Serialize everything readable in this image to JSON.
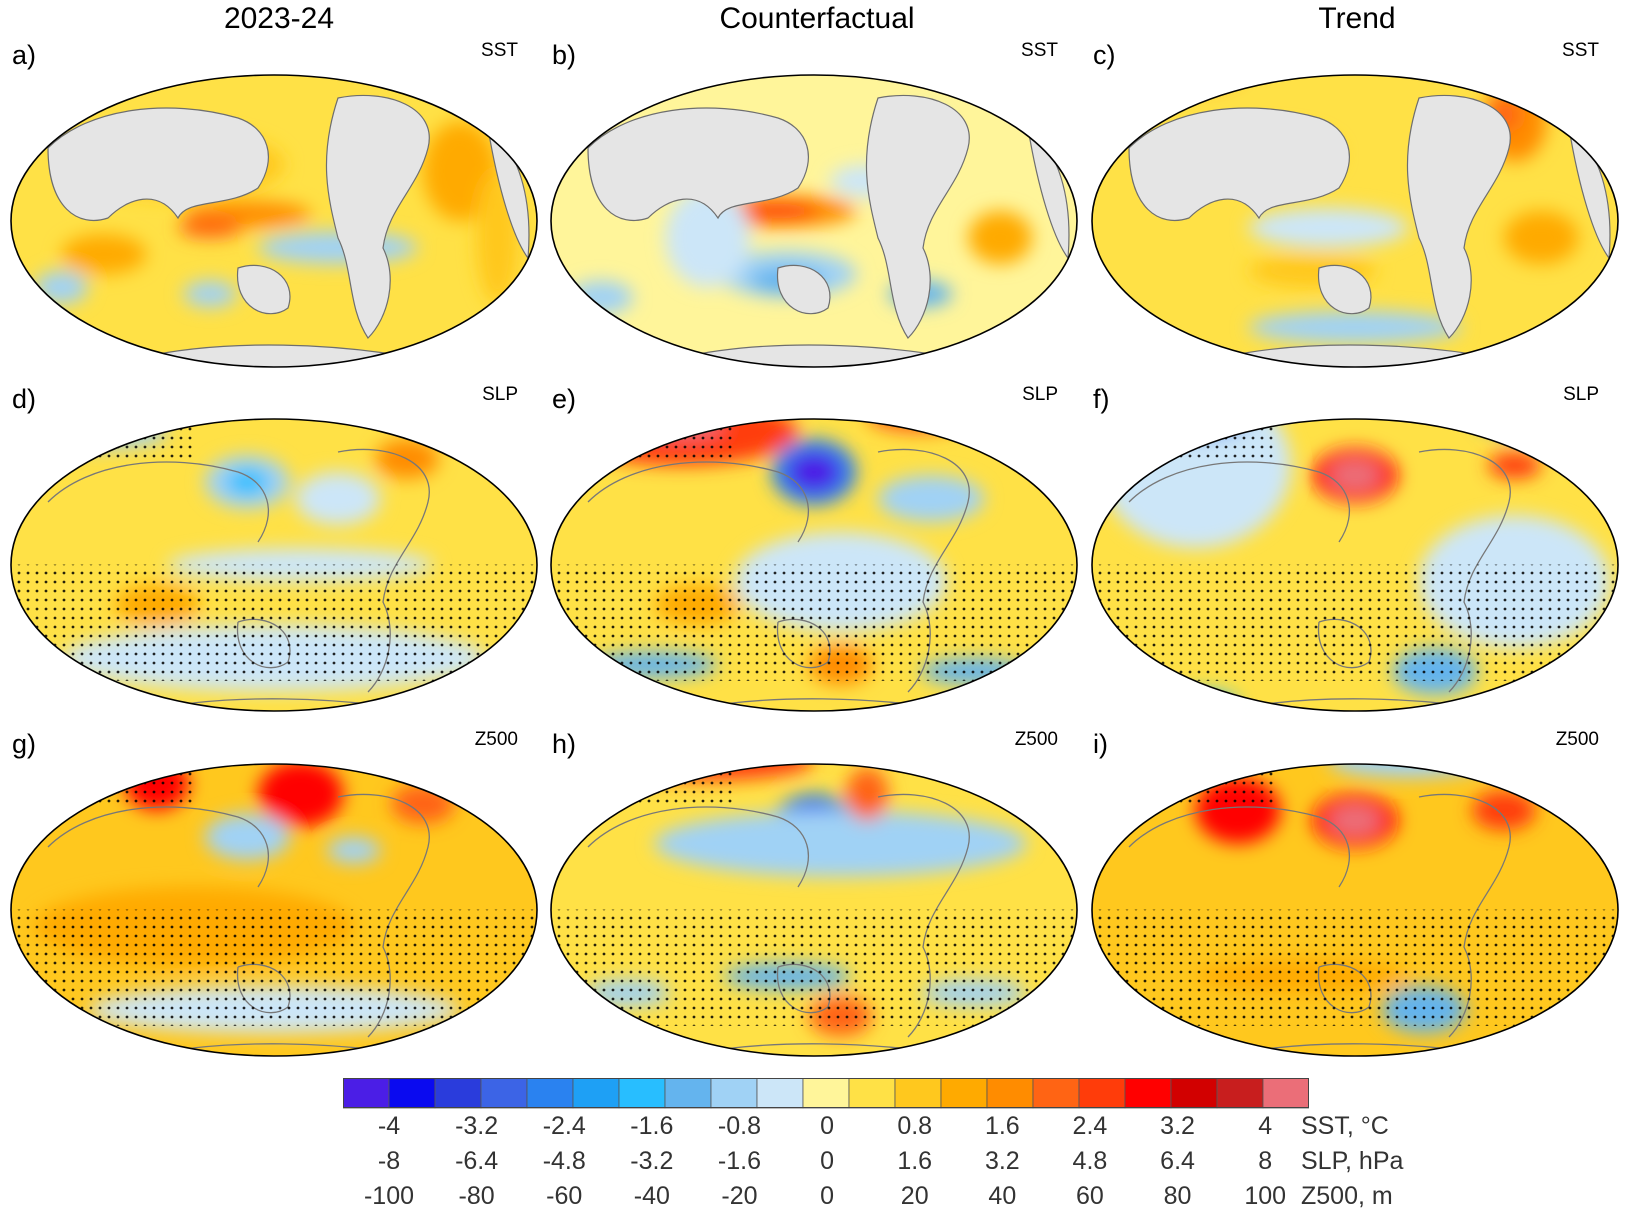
{
  "columns": [
    "2023-24",
    "Counterfactual",
    "Trend"
  ],
  "panels": [
    {
      "letter": "a)",
      "variable": "SST"
    },
    {
      "letter": "b)",
      "variable": "SST"
    },
    {
      "letter": "c)",
      "variable": "SST"
    },
    {
      "letter": "d)",
      "variable": "SLP"
    },
    {
      "letter": "e)",
      "variable": "SLP"
    },
    {
      "letter": "f)",
      "variable": "SLP"
    },
    {
      "letter": "g)",
      "variable": "Z500"
    },
    {
      "letter": "h)",
      "variable": "Z500"
    },
    {
      "letter": "i)",
      "variable": "Z500"
    }
  ],
  "colorbar": {
    "colors": [
      "#4b1ee6",
      "#0a0af0",
      "#2a3cdc",
      "#3c64e6",
      "#2a82f0",
      "#1ea0f5",
      "#28beff",
      "#64b4ee",
      "#a0d2f5",
      "#cce6f8",
      "#fff59a",
      "#ffe146",
      "#ffc81e",
      "#ffaa00",
      "#ff8c00",
      "#ff6414",
      "#ff3c0a",
      "#ff0000",
      "#d20000",
      "#c81e1e",
      "#eb6e78"
    ],
    "rows": [
      {
        "ticks": [
          "-4",
          "-3.2",
          "-2.4",
          "-1.6",
          "-0.8",
          "0",
          "0.8",
          "1.6",
          "2.4",
          "3.2",
          "4"
        ],
        "unit": "SST, °C"
      },
      {
        "ticks": [
          "-8",
          "-6.4",
          "-4.8",
          "-3.2",
          "-1.6",
          "0",
          "1.6",
          "3.2",
          "4.8",
          "6.4",
          "8"
        ],
        "unit": "SLP, hPa"
      },
      {
        "ticks": [
          "-100",
          "-80",
          "-60",
          "-40",
          "-20",
          "0",
          "20",
          "40",
          "60",
          "80",
          "100"
        ],
        "unit": "Z500, m"
      }
    ]
  }
}
